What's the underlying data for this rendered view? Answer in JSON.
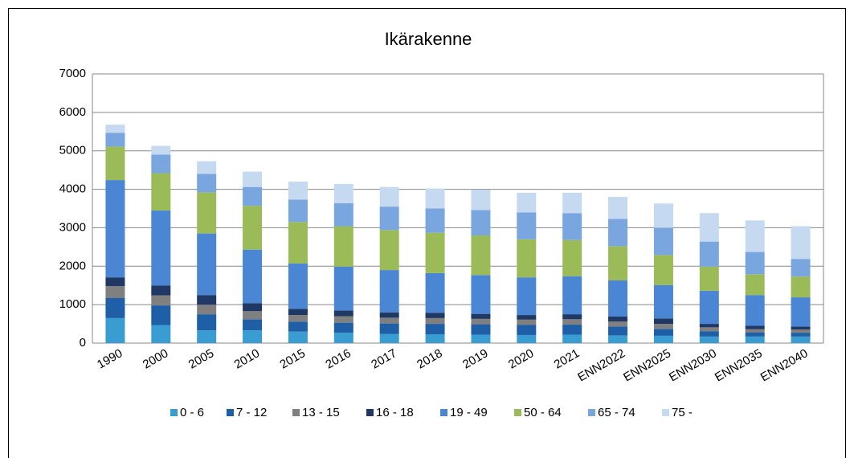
{
  "chart_data": {
    "type": "stacked_bar",
    "title": "Ikärakenne",
    "categories": [
      "1990",
      "2000",
      "2005",
      "2010",
      "2015",
      "2016",
      "2017",
      "2018",
      "2019",
      "2020",
      "2021",
      "ENN2022",
      "ENN2025",
      "ENN2030",
      "ENN2035",
      "ENN2040"
    ],
    "series": [
      {
        "name": "0 - 6",
        "color": "#3a9dd1",
        "values": [
          650,
          470,
          330,
          330,
          300,
          270,
          240,
          230,
          220,
          210,
          220,
          200,
          190,
          170,
          170,
          170
        ]
      },
      {
        "name": "7 - 12",
        "color": "#1f5fa8",
        "values": [
          520,
          510,
          420,
          290,
          260,
          260,
          270,
          270,
          270,
          260,
          260,
          230,
          180,
          140,
          110,
          100
        ]
      },
      {
        "name": "13 - 15",
        "color": "#808080",
        "values": [
          310,
          260,
          250,
          210,
          170,
          170,
          150,
          150,
          140,
          140,
          140,
          130,
          130,
          100,
          80,
          80
        ]
      },
      {
        "name": "16 - 18",
        "color": "#1f3864",
        "values": [
          230,
          260,
          250,
          210,
          160,
          150,
          140,
          140,
          130,
          120,
          130,
          130,
          140,
          90,
          90,
          80
        ]
      },
      {
        "name": "19 - 49",
        "color": "#4a86d4",
        "values": [
          2530,
          1950,
          1600,
          1390,
          1180,
          1140,
          1100,
          1030,
          1010,
          980,
          990,
          940,
          870,
          860,
          800,
          760
        ]
      },
      {
        "name": "50 - 64",
        "color": "#9bbb59",
        "values": [
          870,
          970,
          1070,
          1140,
          1080,
          1050,
          1040,
          1050,
          1030,
          990,
          940,
          890,
          780,
          630,
          540,
          540
        ]
      },
      {
        "name": "65 - 74",
        "color": "#7aa6e0",
        "values": [
          360,
          480,
          480,
          490,
          580,
          600,
          610,
          630,
          660,
          700,
          700,
          710,
          710,
          650,
          580,
          460
        ]
      },
      {
        "name": "75 -",
        "color": "#c5d9f1",
        "values": [
          210,
          230,
          330,
          400,
          470,
          500,
          510,
          520,
          530,
          510,
          530,
          570,
          630,
          740,
          820,
          850
        ]
      }
    ],
    "ylim": [
      0,
      7000
    ],
    "yticks": [
      0,
      1000,
      2000,
      3000,
      4000,
      5000,
      6000,
      7000
    ],
    "grid": true,
    "legend": "bottom"
  }
}
